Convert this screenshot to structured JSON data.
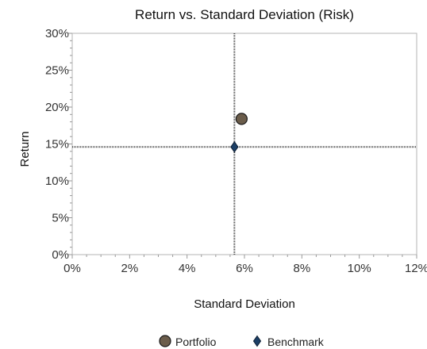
{
  "chart_data": {
    "type": "scatter",
    "title": "Return vs. Standard Deviation (Risk)",
    "xlabel": "Standard Deviation",
    "ylabel": "Return",
    "xlim": [
      0,
      12
    ],
    "ylim": [
      0,
      30
    ],
    "x_ticks": [
      "0%",
      "2%",
      "4%",
      "6%",
      "8%",
      "10%",
      "12%"
    ],
    "y_ticks": [
      "0%",
      "5%",
      "10%",
      "15%",
      "20%",
      "25%",
      "30%"
    ],
    "reference_lines": {
      "x": 5.65,
      "y": 14.6
    },
    "legend_position": "bottom",
    "series": [
      {
        "name": "Portfolio",
        "marker": "circle",
        "color": "#6b5d4b",
        "x": [
          5.9
        ],
        "y": [
          18.4
        ]
      },
      {
        "name": "Benchmark",
        "marker": "diamond",
        "color": "#1c3f66",
        "x": [
          5.65
        ],
        "y": [
          14.6
        ]
      }
    ]
  }
}
